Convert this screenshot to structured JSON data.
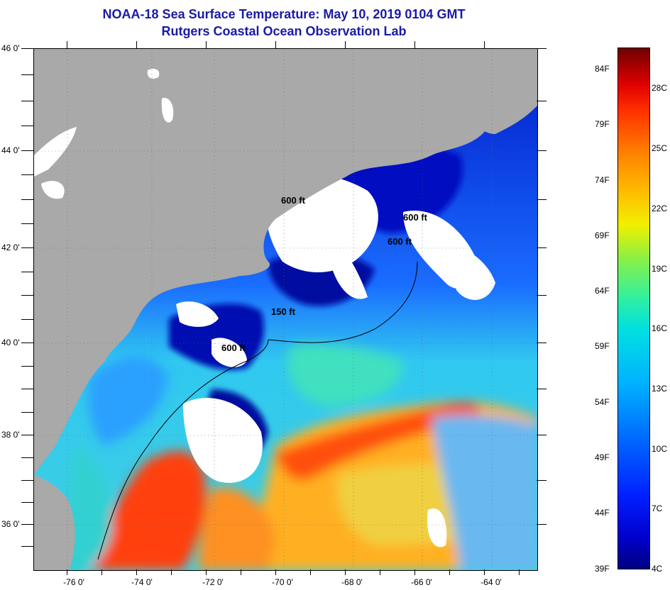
{
  "title": {
    "line1": "NOAA-18 Sea Surface Temperature:  May 10, 2019 0104 GMT",
    "line2": "Rutgers Coastal Ocean Observation Lab"
  },
  "axes": {
    "latitude_labels": [
      "46 0'",
      "44 0'",
      "42 0'",
      "40 0'",
      "38 0'",
      "36 0'"
    ],
    "longitude_labels": [
      "-76 0'",
      "-74 0'",
      "-72 0'",
      "-70 0'",
      "-68 0'",
      "-66 0'",
      "-64 0'"
    ]
  },
  "depth_contours": [
    "600 ft",
    "600 ft",
    "600 ft",
    "150 ft",
    "600 ft"
  ],
  "colorbar": {
    "fahrenheit": [
      "84F",
      "79F",
      "74F",
      "69F",
      "64F",
      "59F",
      "54F",
      "49F",
      "44F",
      "39F"
    ],
    "celsius": [
      "28C",
      "25C",
      "22C",
      "19C",
      "16C",
      "13C",
      "10C",
      "7C",
      "4C"
    ]
  },
  "colors": {
    "land": "#a9a9a9",
    "cloud": "#ffffff",
    "cold_shelf": "#0010c0",
    "gulf_stream": "#ff4a10",
    "title": "#1a1aa6"
  }
}
